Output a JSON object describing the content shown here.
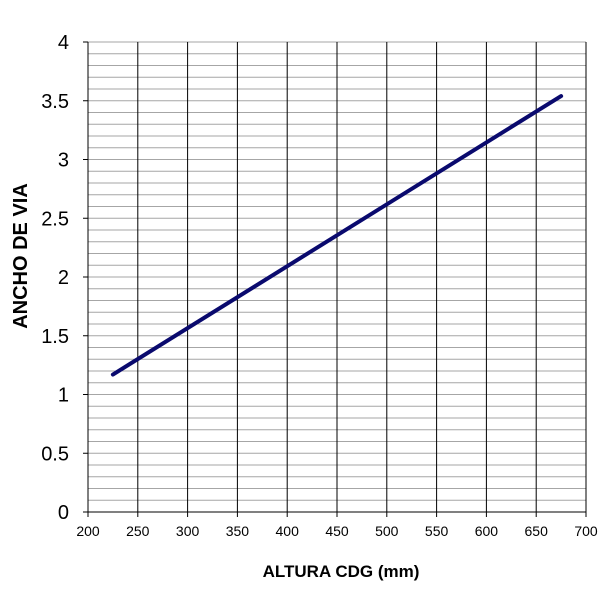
{
  "chart_data": {
    "type": "line",
    "title": "",
    "xlabel": "ALTURA CDG (mm)",
    "ylabel": "ANCHO DE VIA",
    "xlim": [
      200,
      700
    ],
    "ylim": [
      0,
      4
    ],
    "x_ticks": [
      "200",
      "250",
      "300",
      "350",
      "400",
      "450",
      "500",
      "550",
      "600",
      "650",
      "700"
    ],
    "y_ticks": [
      "0",
      "0.5",
      "1",
      "1.5",
      "2",
      "2.5",
      "3",
      "3.5",
      "4"
    ],
    "x_major_grid_step": 50,
    "y_minor_grid_step": 0.1,
    "grid": true,
    "legend": "none",
    "series": [
      {
        "name": "ANCHO DE VIA",
        "color": "#0a0a6e",
        "x": [
          225,
          675
        ],
        "y": [
          1.17,
          3.54
        ]
      }
    ]
  }
}
